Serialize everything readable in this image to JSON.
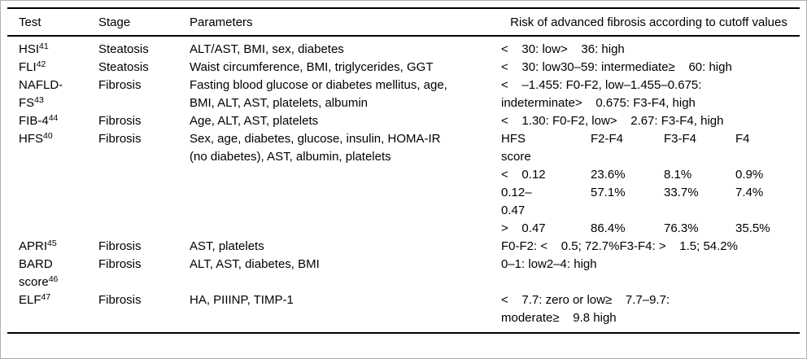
{
  "meta": {
    "background": "#ffffff",
    "text_color": "#000000",
    "rule_color": "#000000",
    "frame_border_color": "#b0b0b0"
  },
  "table": {
    "headers": {
      "test": "Test",
      "stage": "Stage",
      "parameters": "Parameters",
      "risk": "Risk of advanced fibrosis according to cutoff values"
    },
    "rows": [
      {
        "test_lines": [
          {
            "text": "HSI",
            "sup": "41"
          }
        ],
        "stage": "Steatosis",
        "parameters": "ALT/AST, BMI, sex, diabetes",
        "risk": "<    30: low>    36: high"
      },
      {
        "test_lines": [
          {
            "text": "FLI",
            "sup": "42"
          }
        ],
        "stage": "Steatosis",
        "parameters": "Waist circumference, BMI, triglycerides, GGT",
        "risk": "<    30: low30–59: intermediate≥    60: high"
      },
      {
        "test_lines": [
          {
            "text": "NAFLD-"
          },
          {
            "text": "FS",
            "sup": "43"
          }
        ],
        "stage": "Fibrosis",
        "parameters": "Fasting blood glucose or diabetes mellitus, age,\nBMI, ALT, AST, platelets, albumin",
        "risk": "<    –1.455: F0-F2, low–1.455–0.675:\nindeterminate>    0.675: F3-F4, high"
      },
      {
        "test_lines": [
          {
            "text": "FIB-4",
            "sup": "44"
          }
        ],
        "stage": "Fibrosis",
        "parameters": "Age, ALT, AST, platelets",
        "risk": "<    1.30: F0-F2, low>    2.67: F3-F4, high"
      },
      {
        "test_lines": [
          {
            "text": "HFS",
            "sup": "40"
          }
        ],
        "stage": "Fibrosis",
        "parameters": "Sex, age, diabetes, glucose, insulin, HOMA-IR\n(no diabetes), AST, albumin, platelets",
        "risk_subtable": {
          "columns": [
            "HFS\nscore",
            "F2-F4",
            "F3-F4",
            "F4"
          ],
          "rows": [
            [
              "<    0.12",
              "23.6%",
              "8.1%",
              "0.9%"
            ],
            [
              "0.12–\n0.47",
              "57.1%",
              "33.7%",
              "7.4%"
            ],
            [
              ">    0.47",
              "86.4%",
              "76.3%",
              "35.5%"
            ]
          ]
        }
      },
      {
        "test_lines": [
          {
            "text": "APRI",
            "sup": "45"
          }
        ],
        "stage": "Fibrosis",
        "parameters": "AST, platelets",
        "risk": "F0-F2: <    0.5; 72.7%F3-F4: >    1.5; 54.2%"
      },
      {
        "test_lines": [
          {
            "text": "BARD"
          },
          {
            "text": "score",
            "sup": "46"
          }
        ],
        "stage": "Fibrosis",
        "parameters": "ALT, AST, diabetes, BMI",
        "risk": "0–1: low2–4: high"
      },
      {
        "test_lines": [
          {
            "text": "ELF",
            "sup": "47"
          }
        ],
        "stage": "Fibrosis",
        "parameters": "HA, PIIINP, TIMP-1",
        "risk": "<    7.7: zero or low≥    7.7–9.7:\nmoderate≥    9.8 high"
      }
    ]
  }
}
